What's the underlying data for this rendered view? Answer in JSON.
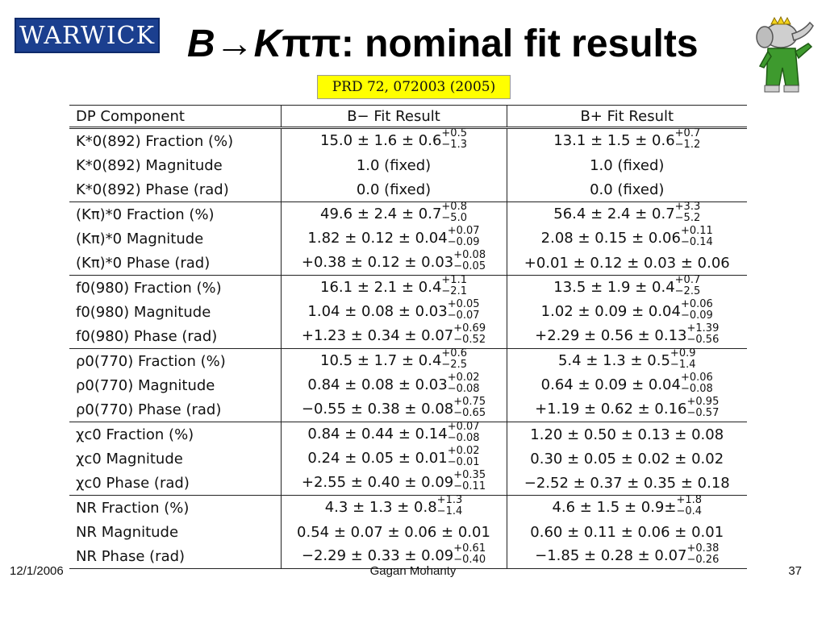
{
  "logo_text": "WARWICK",
  "title": {
    "b": "B",
    "arrow": "→",
    "k": "K",
    "pipi": "ππ",
    "rest": ": nominal fit results"
  },
  "reference": "PRD 72, 072003 (2005)",
  "table": {
    "headers": [
      "DP Component",
      "B− Fit Result",
      "B+ Fit Result"
    ],
    "rows": [
      {
        "label": "K*0(892) Fraction (%)",
        "bminus": "15.0 ± 1.6 ± 0.6",
        "bminus_up": "+0.5",
        "bminus_dn": "−1.3",
        "bplus": "13.1 ± 1.5 ± 0.6",
        "bplus_up": "+0.7",
        "bplus_dn": "−1.2"
      },
      {
        "label": "K*0(892) Magnitude",
        "bminus": "1.0 (fixed)",
        "bplus": "1.0 (fixed)"
      },
      {
        "label": "K*0(892) Phase (rad)",
        "bminus": "0.0 (fixed)",
        "bplus": "0.0 (fixed)"
      },
      {
        "label": "(Kπ)*0 Fraction (%)",
        "bminus": "49.6 ± 2.4 ± 0.7",
        "bminus_up": "+0.8",
        "bminus_dn": "−5.0",
        "bplus": "56.4 ± 2.4 ± 0.7",
        "bplus_up": "+3.3",
        "bplus_dn": "−5.2"
      },
      {
        "label": "(Kπ)*0 Magnitude",
        "bminus": "1.82 ± 0.12 ± 0.04",
        "bminus_up": "+0.07",
        "bminus_dn": "−0.09",
        "bplus": "2.08 ± 0.15 ± 0.06",
        "bplus_up": "+0.11",
        "bplus_dn": "−0.14"
      },
      {
        "label": "(Kπ)*0 Phase (rad)",
        "bminus": "+0.38 ± 0.12 ± 0.03",
        "bminus_up": "+0.08",
        "bminus_dn": "−0.05",
        "bplus": "+0.01 ± 0.12 ± 0.03 ± 0.06"
      },
      {
        "label": "f0(980) Fraction (%)",
        "bminus": "16.1 ± 2.1 ± 0.4",
        "bminus_up": "+1.1",
        "bminus_dn": "−2.1",
        "bplus": "13.5 ± 1.9 ± 0.4",
        "bplus_up": "+0.7",
        "bplus_dn": "−2.5"
      },
      {
        "label": "f0(980) Magnitude",
        "bminus": "1.04 ± 0.08 ± 0.03",
        "bminus_up": "+0.05",
        "bminus_dn": "−0.07",
        "bplus": "1.02 ± 0.09 ± 0.04",
        "bplus_up": "+0.06",
        "bplus_dn": "−0.09"
      },
      {
        "label": "f0(980) Phase (rad)",
        "bminus": "+1.23 ± 0.34 ± 0.07",
        "bminus_up": "+0.69",
        "bminus_dn": "−0.52",
        "bplus": "+2.29 ± 0.56 ± 0.13",
        "bplus_up": "+1.39",
        "bplus_dn": "−0.56"
      },
      {
        "label": "ρ0(770) Fraction (%)",
        "bminus": "10.5 ± 1.7 ± 0.4",
        "bminus_up": "+0.6",
        "bminus_dn": "−2.5",
        "bplus": "5.4 ± 1.3 ± 0.5",
        "bplus_up": "+0.9",
        "bplus_dn": "−1.4"
      },
      {
        "label": "ρ0(770) Magnitude",
        "bminus": "0.84 ± 0.08 ± 0.03",
        "bminus_up": "+0.02",
        "bminus_dn": "−0.08",
        "bplus": "0.64 ± 0.09 ± 0.04",
        "bplus_up": "+0.06",
        "bplus_dn": "−0.08"
      },
      {
        "label": "ρ0(770) Phase (rad)",
        "bminus": "−0.55 ± 0.38 ± 0.08",
        "bminus_up": "+0.75",
        "bminus_dn": "−0.65",
        "bplus": "+1.19 ± 0.62 ± 0.16",
        "bplus_up": "+0.95",
        "bplus_dn": "−0.57"
      },
      {
        "label": "χc0 Fraction (%)",
        "bminus": "0.84 ± 0.44 ± 0.14",
        "bminus_up": "+0.07",
        "bminus_dn": "−0.08",
        "bplus": "1.20 ± 0.50 ± 0.13 ± 0.08"
      },
      {
        "label": "χc0 Magnitude",
        "bminus": "0.24 ± 0.05 ± 0.01",
        "bminus_up": "+0.02",
        "bminus_dn": "−0.01",
        "bplus": "0.30 ± 0.05 ± 0.02 ± 0.02"
      },
      {
        "label": "χc0 Phase (rad)",
        "bminus": "+2.55 ± 0.40 ± 0.09",
        "bminus_up": "+0.35",
        "bminus_dn": "−0.11",
        "bplus": "−2.52 ± 0.37 ± 0.35 ± 0.18"
      },
      {
        "label": "NR Fraction (%)",
        "bminus": "4.3 ± 1.3 ± 0.8",
        "bminus_up": "+1.3",
        "bminus_dn": "−1.4",
        "bplus": "4.6 ± 1.5 ± 0.9±",
        "bplus_up": "+1.8",
        "bplus_dn": "−0.4"
      },
      {
        "label": "NR Magnitude",
        "bminus": "0.54 ± 0.07 ± 0.06 ± 0.01",
        "bplus": "0.60 ± 0.11 ± 0.06 ± 0.01"
      },
      {
        "label": "NR Phase (rad)",
        "bminus": "−2.29 ± 0.33 ± 0.09",
        "bminus_up": "+0.61",
        "bminus_dn": "−0.40",
        "bplus": "−1.85 ± 0.28 ± 0.07",
        "bplus_up": "+0.38",
        "bplus_dn": "−0.26"
      }
    ]
  },
  "footer": {
    "date": "12/1/2006",
    "author": "Gagan Mohanty",
    "page": "37"
  },
  "icons": {
    "logo": "warwick-logo",
    "mascot": "babar-elephant-icon"
  },
  "colors": {
    "logo_bg": "#1b3f8f",
    "reference_bg": "#ffff00",
    "mascot_suit": "#3e9a2e"
  }
}
